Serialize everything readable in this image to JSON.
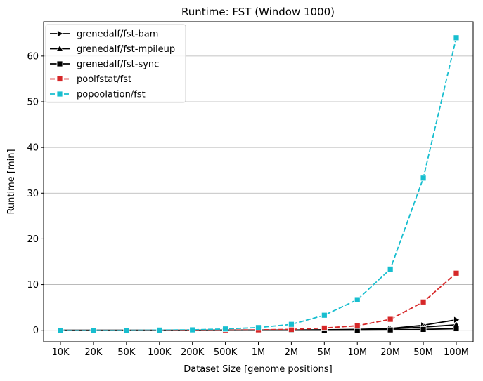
{
  "chart_data": {
    "type": "line",
    "title": "Runtime:  FST (Window 1000)",
    "xlabel": "Dataset Size  [genome positions]",
    "ylabel": "Runtime  [min]",
    "categories": [
      "10K",
      "20K",
      "50K",
      "100K",
      "200K",
      "500K",
      "1M",
      "2M",
      "5M",
      "10M",
      "20M",
      "50M",
      "100M"
    ],
    "ylim": [
      -2.5,
      67.5
    ],
    "yticks": [
      0,
      10,
      20,
      30,
      40,
      50,
      60
    ],
    "grid": "horizontal",
    "legend_position": "top-left",
    "series": [
      {
        "name": "grenedalf/fst-bam",
        "color": "#000000",
        "line_style": "solid",
        "marker": "triangle-right",
        "values": [
          0.0,
          0.0,
          0.0,
          0.0,
          0.0,
          0.01,
          0.02,
          0.05,
          0.1,
          0.2,
          0.4,
          1.1,
          2.3
        ]
      },
      {
        "name": "grenedalf/fst-mpileup",
        "color": "#000000",
        "line_style": "solid",
        "marker": "triangle-up",
        "values": [
          0.0,
          0.0,
          0.0,
          0.0,
          0.0,
          0.01,
          0.02,
          0.04,
          0.08,
          0.15,
          0.3,
          0.7,
          1.2
        ]
      },
      {
        "name": "grenedalf/fst-sync",
        "color": "#000000",
        "line_style": "solid",
        "marker": "square",
        "values": [
          0.0,
          0.0,
          0.0,
          0.0,
          0.0,
          0.0,
          0.01,
          0.01,
          0.02,
          0.04,
          0.08,
          0.2,
          0.35
        ]
      },
      {
        "name": "poolfstat/fst",
        "color": "#d62728",
        "line_style": "dashed",
        "marker": "square",
        "values": [
          0.0,
          0.0,
          0.0,
          0.01,
          0.02,
          0.05,
          0.1,
          0.2,
          0.5,
          1.0,
          2.4,
          6.2,
          12.5
        ]
      },
      {
        "name": "popoolation/fst",
        "color": "#17becf",
        "line_style": "dashed",
        "marker": "square",
        "values": [
          0.0,
          0.0,
          0.0,
          0.05,
          0.1,
          0.3,
          0.6,
          1.3,
          3.3,
          6.7,
          13.4,
          33.3,
          64.0
        ]
      }
    ]
  }
}
